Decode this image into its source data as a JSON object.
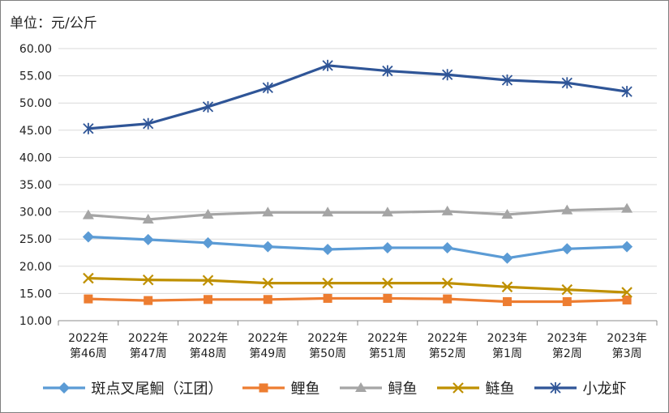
{
  "unit_label": "单位：元/公斤",
  "chart_data": {
    "type": "line",
    "title": "",
    "xlabel": "",
    "ylabel": "单位：元/公斤",
    "ylim": [
      10,
      60
    ],
    "yticks": [
      "10.00",
      "15.00",
      "20.00",
      "25.00",
      "30.00",
      "35.00",
      "40.00",
      "45.00",
      "50.00",
      "55.00",
      "60.00"
    ],
    "categories": [
      [
        "2022年",
        "第46周"
      ],
      [
        "2022年",
        "第47周"
      ],
      [
        "2022年",
        "第48周"
      ],
      [
        "2022年",
        "第49周"
      ],
      [
        "2022年",
        "第50周"
      ],
      [
        "2022年",
        "第51周"
      ],
      [
        "2022年",
        "第52周"
      ],
      [
        "2023年",
        "第1周"
      ],
      [
        "2023年",
        "第2周"
      ],
      [
        "2023年",
        "第3周"
      ]
    ],
    "grid": true,
    "legend_position": "bottom",
    "series": [
      {
        "name": "斑点叉尾鮰（江团）",
        "color": "#5b9bd5",
        "marker": "diamond",
        "values": [
          25.4,
          24.9,
          24.3,
          23.6,
          23.1,
          23.4,
          23.4,
          21.5,
          23.2,
          23.6
        ]
      },
      {
        "name": "鲤鱼",
        "color": "#ed7d31",
        "marker": "square",
        "values": [
          14.0,
          13.7,
          13.9,
          13.9,
          14.1,
          14.1,
          14.0,
          13.5,
          13.5,
          13.8
        ]
      },
      {
        "name": "鲟鱼",
        "color": "#a5a5a5",
        "marker": "triangle",
        "values": [
          29.4,
          28.6,
          29.5,
          29.9,
          29.9,
          29.9,
          30.1,
          29.5,
          30.3,
          30.6
        ]
      },
      {
        "name": "鲢鱼",
        "color": "#bf9000",
        "marker": "x",
        "values": [
          17.8,
          17.5,
          17.4,
          16.9,
          16.9,
          16.9,
          16.9,
          16.2,
          15.7,
          15.2
        ]
      },
      {
        "name": "小龙虾",
        "color": "#2f5597",
        "marker": "asterisk",
        "values": [
          45.3,
          46.2,
          49.3,
          52.8,
          56.9,
          55.9,
          55.2,
          54.2,
          53.7,
          52.1
        ]
      }
    ]
  }
}
